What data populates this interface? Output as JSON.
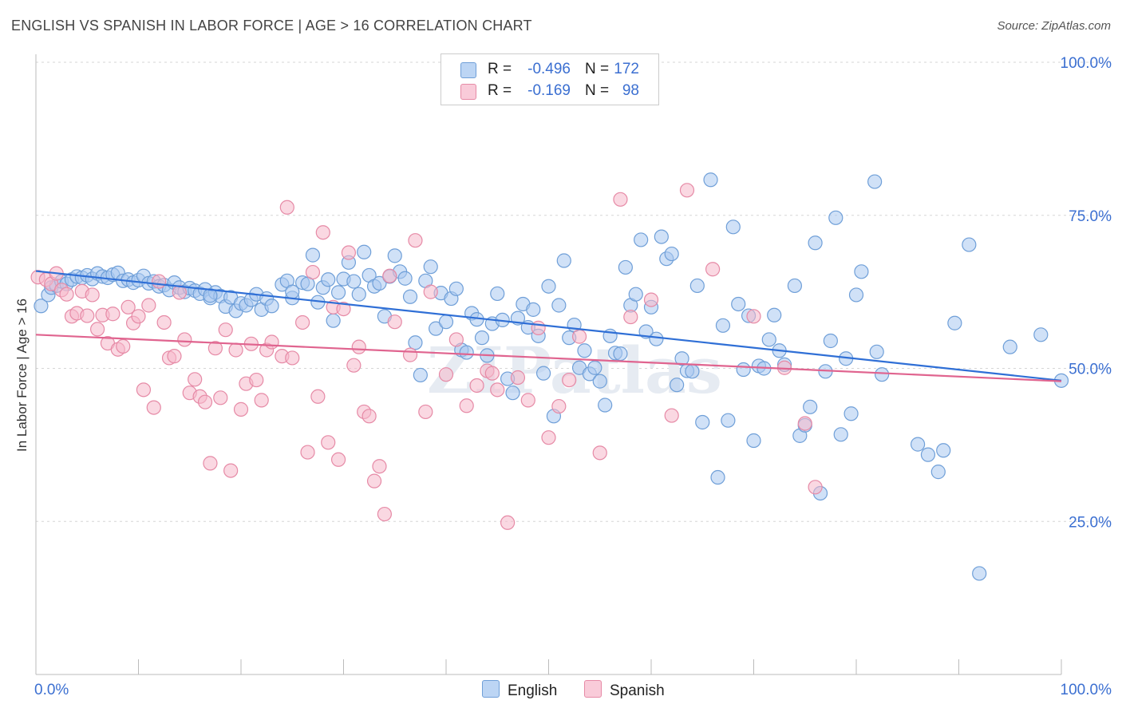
{
  "title": "ENGLISH VS SPANISH IN LABOR FORCE | AGE > 16 CORRELATION CHART",
  "source": "Source: ZipAtlas.com",
  "watermark": "ZIPatlas",
  "colors": {
    "english_fill": "#a9c8f0",
    "english_stroke": "#6f9fd8",
    "english_line": "#2f6fd6",
    "spanish_fill": "#f6b8cb",
    "spanish_stroke": "#e68aa6",
    "spanish_line": "#e0648f",
    "axis_text": "#3b6fd1",
    "grid": "#d6d6d6"
  },
  "legend": {
    "rows": [
      {
        "r_label": "R =",
        "r_value": "-0.496",
        "n_label": "N =",
        "n_value": "172",
        "series": "English"
      },
      {
        "r_label": "R =",
        "r_value": "-0.169",
        "n_label": "N =",
        "n_value": "98",
        "series": "Spanish"
      }
    ]
  },
  "bottom_legend": {
    "english": "English",
    "spanish": "Spanish"
  },
  "chart_data": {
    "type": "scatter",
    "title": "ENGLISH VS SPANISH IN LABOR FORCE | AGE > 16 CORRELATION CHART",
    "xlabel": "",
    "ylabel": "In Labor Force | Age > 16",
    "xlim": [
      0,
      100
    ],
    "ylim": [
      0,
      100
    ],
    "x_tick_labels": [
      "0.0%",
      "100.0%"
    ],
    "y_tick_labels": [
      "25.0%",
      "50.0%",
      "75.0%",
      "100.0%"
    ],
    "y_ticks": [
      25,
      50,
      75,
      100
    ],
    "grid": true,
    "legend_placement": "top-center",
    "series": [
      {
        "name": "English",
        "trend": {
          "x": [
            0,
            100
          ],
          "y": [
            65.9,
            48.0
          ]
        },
        "points": [
          [
            0.5,
            60.2
          ],
          [
            1.2,
            62.0
          ],
          [
            1.5,
            63.2
          ],
          [
            2,
            63.5
          ],
          [
            2.5,
            64.2
          ],
          [
            3,
            63.8
          ],
          [
            3.5,
            64.5
          ],
          [
            4,
            65.0
          ],
          [
            4.5,
            64.8
          ],
          [
            5,
            65.2
          ],
          [
            5.5,
            64.6
          ],
          [
            6,
            65.5
          ],
          [
            6.5,
            65.0
          ],
          [
            7,
            64.8
          ],
          [
            7.5,
            65.3
          ],
          [
            8,
            65.6
          ],
          [
            8.5,
            64.3
          ],
          [
            9,
            64.5
          ],
          [
            9.5,
            64.0
          ],
          [
            10,
            64.4
          ],
          [
            10.5,
            65.1
          ],
          [
            11,
            63.9
          ],
          [
            11.5,
            64.2
          ],
          [
            12,
            63.4
          ],
          [
            12.5,
            63.6
          ],
          [
            13,
            62.8
          ],
          [
            13.5,
            64.0
          ],
          [
            14,
            63.2
          ],
          [
            14.5,
            62.5
          ],
          [
            15,
            63.1
          ],
          [
            15.5,
            62.7
          ],
          [
            16,
            62.2
          ],
          [
            16.5,
            62.9
          ],
          [
            17,
            61.5
          ],
          [
            17.5,
            62.4
          ],
          [
            18,
            61.8
          ],
          [
            18.5,
            60.1
          ],
          [
            19,
            61.6
          ],
          [
            19.5,
            59.4
          ],
          [
            20,
            60.6
          ],
          [
            20.5,
            60.3
          ],
          [
            21,
            61.2
          ],
          [
            21.5,
            62.1
          ],
          [
            22,
            59.6
          ],
          [
            22.5,
            61.4
          ],
          [
            23,
            60.2
          ],
          [
            24,
            63.7
          ],
          [
            24.5,
            64.3
          ],
          [
            25,
            61.5
          ],
          [
            26,
            64.0
          ],
          [
            26.5,
            63.8
          ],
          [
            27,
            68.5
          ],
          [
            27.5,
            60.8
          ],
          [
            28,
            63.2
          ],
          [
            28.5,
            64.5
          ],
          [
            29,
            57.8
          ],
          [
            29.5,
            62.4
          ],
          [
            30,
            64.6
          ],
          [
            30.5,
            67.3
          ],
          [
            31,
            64.2
          ],
          [
            31.5,
            62.1
          ],
          [
            32,
            69.0
          ],
          [
            32.5,
            65.2
          ],
          [
            33,
            63.4
          ],
          [
            33.5,
            63.9
          ],
          [
            34,
            58.5
          ],
          [
            34.5,
            65.0
          ],
          [
            35,
            68.4
          ],
          [
            35.5,
            65.8
          ],
          [
            36,
            64.7
          ],
          [
            36.5,
            61.7
          ],
          [
            37,
            54.2
          ],
          [
            37.5,
            48.9
          ],
          [
            38,
            64.3
          ],
          [
            38.5,
            66.6
          ],
          [
            39,
            56.5
          ],
          [
            39.5,
            62.3
          ],
          [
            40,
            57.6
          ],
          [
            40.5,
            61.4
          ],
          [
            41,
            63.0
          ],
          [
            41.5,
            53.0
          ],
          [
            42,
            52.6
          ],
          [
            42.5,
            59.0
          ],
          [
            43,
            58.0
          ],
          [
            43.5,
            55.0
          ],
          [
            44,
            52.1
          ],
          [
            44.5,
            57.3
          ],
          [
            45,
            62.2
          ],
          [
            45.5,
            57.9
          ],
          [
            46,
            48.3
          ],
          [
            46.5,
            46.0
          ],
          [
            47,
            58.2
          ],
          [
            47.5,
            60.5
          ],
          [
            48,
            56.7
          ],
          [
            48.5,
            59.6
          ],
          [
            49,
            55.3
          ],
          [
            49.5,
            49.2
          ],
          [
            50,
            63.4
          ],
          [
            50.5,
            42.2
          ],
          [
            51,
            60.3
          ],
          [
            51.5,
            67.6
          ],
          [
            52,
            55.0
          ],
          [
            52.5,
            57.1
          ],
          [
            53,
            50.1
          ],
          [
            53.5,
            52.9
          ],
          [
            54,
            49.1
          ],
          [
            54.5,
            50.1
          ],
          [
            55,
            47.9
          ],
          [
            55.5,
            44.0
          ],
          [
            56,
            55.3
          ],
          [
            56.5,
            52.5
          ],
          [
            57,
            52.4
          ],
          [
            57.5,
            66.5
          ],
          [
            58,
            60.3
          ],
          [
            58.5,
            62.1
          ],
          [
            59,
            71.0
          ],
          [
            59.5,
            56.0
          ],
          [
            60,
            60.0
          ],
          [
            60.5,
            54.8
          ],
          [
            61,
            71.5
          ],
          [
            61.5,
            67.9
          ],
          [
            62,
            68.7
          ],
          [
            62.5,
            47.3
          ],
          [
            63,
            51.6
          ],
          [
            63.5,
            49.6
          ],
          [
            64,
            49.5
          ],
          [
            64.5,
            63.5
          ],
          [
            65,
            41.2
          ],
          [
            65.8,
            80.8
          ],
          [
            66.5,
            32.2
          ],
          [
            67,
            57.0
          ],
          [
            67.5,
            41.5
          ],
          [
            68,
            73.1
          ],
          [
            68.5,
            60.5
          ],
          [
            69,
            49.8
          ],
          [
            69.5,
            58.6
          ],
          [
            70,
            38.2
          ],
          [
            70.5,
            50.4
          ],
          [
            71,
            50.0
          ],
          [
            71.5,
            54.7
          ],
          [
            72,
            58.7
          ],
          [
            72.5,
            52.9
          ],
          [
            73,
            50.6
          ],
          [
            74,
            63.5
          ],
          [
            74.5,
            39.0
          ],
          [
            75,
            40.7
          ],
          [
            75.5,
            43.7
          ],
          [
            76,
            70.5
          ],
          [
            76.5,
            29.6
          ],
          [
            77,
            49.5
          ],
          [
            77.5,
            54.5
          ],
          [
            78,
            74.6
          ],
          [
            78.5,
            39.2
          ],
          [
            79,
            51.6
          ],
          [
            79.5,
            42.6
          ],
          [
            80,
            62.0
          ],
          [
            80.5,
            65.8
          ],
          [
            81.8,
            80.5
          ],
          [
            82,
            52.7
          ],
          [
            82.5,
            49.0
          ],
          [
            86,
            37.6
          ],
          [
            87,
            35.9
          ],
          [
            88,
            33.1
          ],
          [
            88.5,
            36.6
          ],
          [
            89.6,
            57.4
          ],
          [
            91,
            70.2
          ],
          [
            92,
            16.5
          ],
          [
            95,
            53.5
          ],
          [
            98,
            55.5
          ],
          [
            100,
            48.0
          ],
          [
            17,
            61.9
          ],
          [
            25,
            62.5
          ]
        ]
      },
      {
        "name": "Spanish",
        "trend": {
          "x": [
            0,
            100
          ],
          "y": [
            55.5,
            47.9
          ]
        },
        "points": [
          [
            0.2,
            64.9
          ],
          [
            1,
            64.5
          ],
          [
            1.5,
            63.8
          ],
          [
            2,
            65.5
          ],
          [
            2.5,
            62.8
          ],
          [
            3,
            62.1
          ],
          [
            3.5,
            58.5
          ],
          [
            4,
            59.0
          ],
          [
            4.5,
            62.6
          ],
          [
            5,
            58.6
          ],
          [
            5.5,
            62.0
          ],
          [
            6,
            56.4
          ],
          [
            6.5,
            58.7
          ],
          [
            7,
            54.1
          ],
          [
            7.5,
            58.9
          ],
          [
            8,
            53.1
          ],
          [
            8.5,
            53.6
          ],
          [
            9,
            60.0
          ],
          [
            9.5,
            57.4
          ],
          [
            10,
            58.5
          ],
          [
            10.5,
            46.5
          ],
          [
            11,
            60.3
          ],
          [
            11.5,
            43.6
          ],
          [
            12,
            64.2
          ],
          [
            12.5,
            57.5
          ],
          [
            13,
            51.7
          ],
          [
            13.5,
            52.0
          ],
          [
            14,
            62.4
          ],
          [
            14.5,
            54.7
          ],
          [
            15,
            46.0
          ],
          [
            15.5,
            48.2
          ],
          [
            16,
            45.4
          ],
          [
            16.5,
            44.5
          ],
          [
            17,
            34.5
          ],
          [
            17.5,
            53.3
          ],
          [
            18,
            45.2
          ],
          [
            18.5,
            56.3
          ],
          [
            19,
            33.3
          ],
          [
            19.5,
            53.0
          ],
          [
            20,
            43.3
          ],
          [
            20.5,
            47.5
          ],
          [
            21,
            54.0
          ],
          [
            21.5,
            48.1
          ],
          [
            22,
            44.8
          ],
          [
            22.5,
            53.0
          ],
          [
            23,
            54.3
          ],
          [
            24,
            52.0
          ],
          [
            24.5,
            76.3
          ],
          [
            25,
            51.7
          ],
          [
            26,
            57.5
          ],
          [
            26.5,
            36.3
          ],
          [
            27,
            65.7
          ],
          [
            27.5,
            45.4
          ],
          [
            28,
            72.2
          ],
          [
            28.5,
            37.9
          ],
          [
            29,
            60.0
          ],
          [
            29.5,
            35.1
          ],
          [
            30,
            59.7
          ],
          [
            30.5,
            68.9
          ],
          [
            31,
            50.5
          ],
          [
            31.5,
            53.5
          ],
          [
            32,
            42.9
          ],
          [
            32.5,
            42.2
          ],
          [
            33,
            31.6
          ],
          [
            33.5,
            34.0
          ],
          [
            34,
            26.2
          ],
          [
            34.5,
            65.1
          ],
          [
            35,
            57.6
          ],
          [
            36.5,
            52.2
          ],
          [
            37,
            70.9
          ],
          [
            38,
            42.9
          ],
          [
            38.5,
            62.5
          ],
          [
            40,
            49.0
          ],
          [
            41,
            54.7
          ],
          [
            42,
            43.9
          ],
          [
            43,
            47.2
          ],
          [
            44,
            49.6
          ],
          [
            44.5,
            49.2
          ],
          [
            45,
            46.5
          ],
          [
            46,
            24.8
          ],
          [
            47,
            48.5
          ],
          [
            48,
            44.8
          ],
          [
            49,
            56.6
          ],
          [
            50,
            38.7
          ],
          [
            51,
            43.8
          ],
          [
            52,
            48.1
          ],
          [
            53,
            55.2
          ],
          [
            55,
            36.2
          ],
          [
            57,
            77.6
          ],
          [
            58,
            58.4
          ],
          [
            60,
            61.2
          ],
          [
            62,
            42.3
          ],
          [
            63.5,
            79.1
          ],
          [
            66,
            66.2
          ],
          [
            70,
            58.5
          ],
          [
            73,
            50.1
          ],
          [
            75,
            41.0
          ],
          [
            76,
            30.6
          ]
        ]
      }
    ]
  }
}
